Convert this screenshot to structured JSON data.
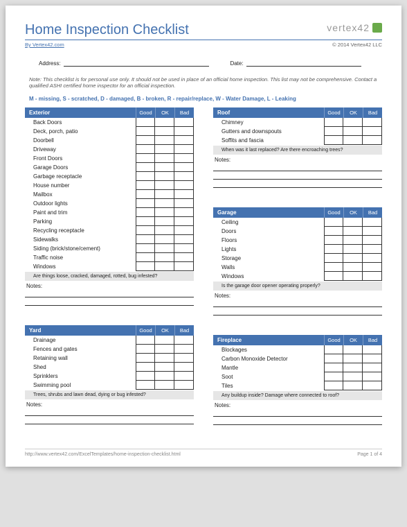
{
  "title": "Home Inspection Checklist",
  "byline": "By Vertex42.com",
  "copyright": "© 2014 Vertex42 LLC",
  "logo_text": "vertex42",
  "address_label": "Address:",
  "date_label": "Date:",
  "note": "Note: This checklist is for personal use only. It should not be used in place of an official home inspection. This list may not be comprehensive. Contact a qualified ASHI certified home inspector for an official inspection.",
  "legend": "M - missing,  S - scratched, D - damaged,  B - broken,  R - repair/replace,  W - Water Damage,  L - Leaking",
  "col_headers": [
    "Good",
    "OK",
    "Bad"
  ],
  "notes_label": "Notes:",
  "sections": {
    "exterior": {
      "title": "Exterior",
      "items": [
        "Back Doors",
        "Deck, porch, patio",
        "Doorbell",
        "Driveway",
        "Front Doors",
        "Garage Doors",
        "Garbage receptacle",
        "House number",
        "Mailbox",
        "Outdoor lights",
        "Paint and trim",
        "Parking",
        "Recycling receptacle",
        "Sidewalks",
        "Siding (brick/stone/cement)",
        "Traffic noise",
        "Windows"
      ],
      "prompt": "Are things loose, cracked, damaged, rotted, bug infested?"
    },
    "yard": {
      "title": "Yard",
      "items": [
        "Drainage",
        "Fences and gates",
        "Retaining wall",
        "Shed",
        "Sprinklers",
        "Swimming pool"
      ],
      "prompt": "Trees, shrubs and lawn dead, dying or bug infested?"
    },
    "roof": {
      "title": "Roof",
      "items": [
        "Chimney",
        "Gutters and downspouts",
        "Soffits and fascia"
      ],
      "prompt": "When was it last replaced? Are there encroaching trees?"
    },
    "garage": {
      "title": "Garage",
      "items": [
        "Ceiling",
        "Doors",
        "Floors",
        "Lights",
        "Storage",
        "Walls",
        "Windows"
      ],
      "prompt": "Is the garage door opener operating properly?"
    },
    "fireplace": {
      "title": "Fireplace",
      "items": [
        "Blockages",
        "Carbon Monoxide Detector",
        "Mantle",
        "Soot",
        "Tiles"
      ],
      "prompt": "Any buildup inside? Damage where connected to roof?"
    }
  },
  "footer_url": "http://www.vertex42.com/ExcelTemplates/home-inspection-checklist.html",
  "footer_page": "Page 1 of 4",
  "colors": {
    "accent": "#4472b0",
    "prompt_bg": "#e6e6e6",
    "logo_green": "#6aaa4a"
  }
}
